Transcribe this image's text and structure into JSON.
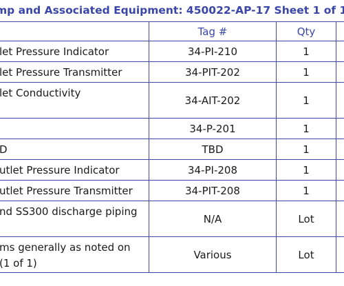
{
  "title": "mp and Associated Equipment: 450022-AP-17 Sheet 1 of 1",
  "headers": {
    "tag": "Tag #",
    "qty": "Qty"
  },
  "rows": [
    {
      "desc": "let Pressure Indicator",
      "tag": "34-PI-210",
      "qty": "1"
    },
    {
      "desc": "let Pressure Transmitter",
      "tag": "34-PIT-202",
      "qty": "1"
    },
    {
      "desc": "let Conductivity",
      "tag": "34-AIT-202",
      "qty": "1"
    },
    {
      "desc": "",
      "tag": "34-P-201",
      "qty": "1"
    },
    {
      "desc": "D",
      "tag": "TBD",
      "qty": "1"
    },
    {
      "desc": "utlet Pressure Indicator",
      "tag": "34-PI-208",
      "qty": "1"
    },
    {
      "desc": "utlet Pressure Transmitter",
      "tag": "34-PIT-208",
      "qty": "1"
    },
    {
      "desc": "nd SS300 discharge piping",
      "tag": "N/A",
      "qty": "Lot"
    },
    {
      "desc": "ms generally as noted on",
      "desc2": "(1 of 1)",
      "tag": "Various",
      "qty": "Lot"
    }
  ]
}
